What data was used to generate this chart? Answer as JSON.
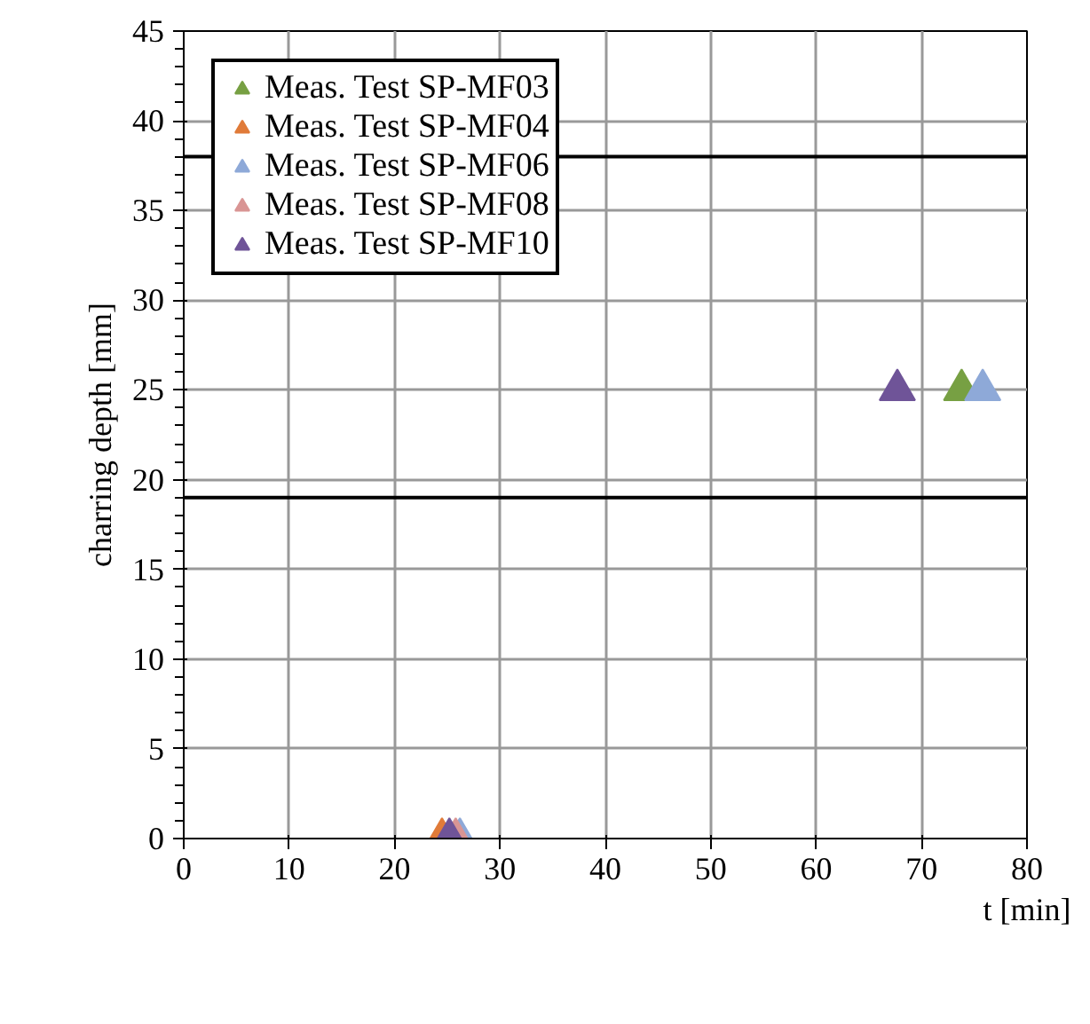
{
  "chart_data": {
    "type": "scatter",
    "xlabel": "t [min]",
    "ylabel": "charring depth [mm]",
    "xlim": [
      0,
      80
    ],
    "ylim": [
      0,
      45
    ],
    "xticks": [
      0,
      10,
      20,
      30,
      40,
      50,
      60,
      70,
      80
    ],
    "yticks": [
      0,
      5,
      10,
      15,
      20,
      25,
      30,
      35,
      40,
      45
    ],
    "grid": true,
    "legend": "top left",
    "marker": "triangle",
    "series": [
      {
        "name": "Meas. Test SP-MF03",
        "color": "#77a043",
        "x": [
          73.8
        ],
        "values": [
          25
        ]
      },
      {
        "name": "Meas. Test SP-MF04",
        "color": "#e07b39",
        "x": [
          24.5
        ],
        "values": [
          0
        ]
      },
      {
        "name": "Meas. Test SP-MF06",
        "color": "#8ea9d8",
        "x": [
          26.2,
          75.8
        ],
        "values": [
          0,
          25
        ]
      },
      {
        "name": "Meas. Test SP-MF08",
        "color": "#d99594",
        "x": [
          25.8
        ],
        "values": [
          0
        ]
      },
      {
        "name": "Meas. Test SP-MF10",
        "color": "#6f5498",
        "x": [
          25.2,
          67.7
        ],
        "values": [
          0,
          25
        ]
      }
    ],
    "ref_lines": [
      {
        "axis": "y",
        "value": 38,
        "color": "#000000"
      },
      {
        "axis": "y",
        "value": 19,
        "color": "#000000"
      }
    ]
  }
}
